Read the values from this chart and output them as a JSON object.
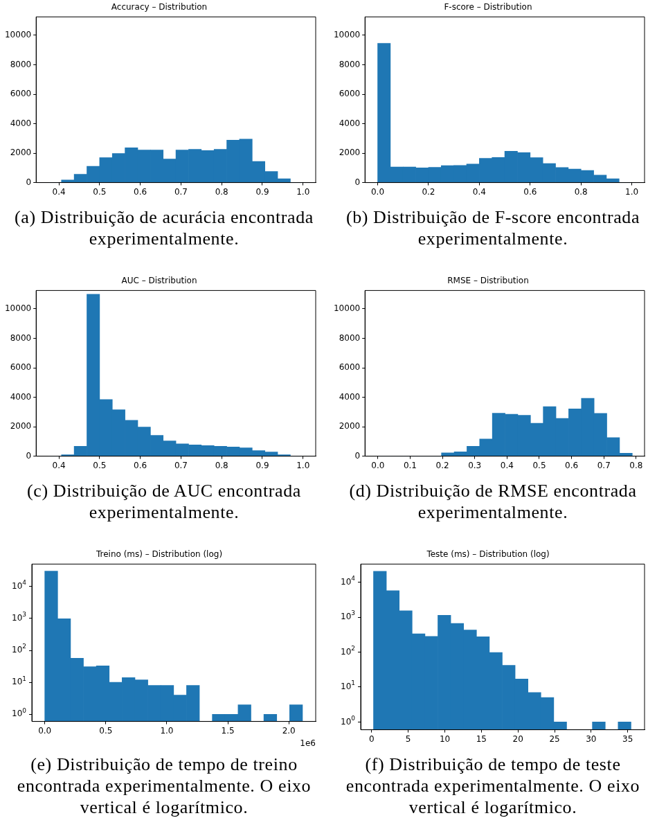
{
  "chart_data": [
    {
      "type": "histogram",
      "title": "Accuracy – Distribution",
      "subtitle": "(a) Distribuição de acurácia encontrada experimentalmente.",
      "color": "#1f77b4",
      "bins": [
        0.375,
        0.40625,
        0.4375,
        0.46875,
        0.5,
        0.53125,
        0.5625,
        0.59375,
        0.625,
        0.65625,
        0.6875,
        0.71875,
        0.75,
        0.78125,
        0.8125,
        0.84375,
        0.875,
        0.90625,
        0.9375,
        0.96875,
        1.0
      ],
      "values": [
        0,
        180,
        560,
        1110,
        1690,
        1980,
        2360,
        2210,
        2210,
        1600,
        2210,
        2260,
        2180,
        2260,
        2880,
        2950,
        1440,
        750,
        260,
        0
      ],
      "xlim": [
        0.344,
        1.031
      ],
      "xticks": [
        0.4,
        0.5,
        0.6,
        0.7,
        0.8,
        0.9,
        {
          "value": 1,
          "label": "1.0"
        }
      ],
      "ylim": [
        0,
        11250
      ],
      "yticks": [
        0,
        2000,
        4000,
        6000,
        8000,
        10000
      ]
    },
    {
      "type": "histogram",
      "title": "F-score – Distribution",
      "subtitle": "(b) Distribuição de F-score encontrada experimentalmente.",
      "color": "#1f77b4",
      "bins": [
        0,
        0.05,
        0.1,
        0.15,
        0.2,
        0.25,
        0.3,
        0.35,
        0.4,
        0.45,
        0.5,
        0.55,
        0.6,
        0.65,
        0.7,
        0.75,
        0.8,
        0.85,
        0.9,
        0.95,
        1.0
      ],
      "values": [
        9450,
        1060,
        1060,
        1000,
        1030,
        1150,
        1160,
        1260,
        1650,
        1700,
        2130,
        2030,
        1690,
        1300,
        1020,
        920,
        820,
        510,
        260,
        0
      ],
      "xlim": [
        -0.05,
        1.05
      ],
      "xticks": [
        {
          "value": 0,
          "label": "0.0"
        },
        0.2,
        0.4,
        0.6,
        0.8,
        {
          "value": 1,
          "label": "1.0"
        }
      ],
      "ylim": [
        0,
        11250
      ],
      "yticks": [
        0,
        2000,
        4000,
        6000,
        8000,
        10000
      ]
    },
    {
      "type": "histogram",
      "title": "AUC – Distribution",
      "subtitle": "(c) Distribuição de AUC encontrada experimentalmente.",
      "color": "#1f77b4",
      "bins": [
        0.375,
        0.40625,
        0.4375,
        0.46875,
        0.5,
        0.53125,
        0.5625,
        0.59375,
        0.625,
        0.65625,
        0.6875,
        0.71875,
        0.75,
        0.78125,
        0.8125,
        0.84375,
        0.875,
        0.90625,
        0.9375,
        0.96875,
        1.0
      ],
      "values": [
        0,
        100,
        670,
        11000,
        3840,
        3150,
        2430,
        1980,
        1410,
        1030,
        840,
        770,
        720,
        670,
        620,
        570,
        380,
        280,
        100,
        0
      ],
      "xlim": [
        0.344,
        1.031
      ],
      "xticks": [
        0.4,
        0.5,
        0.6,
        0.7,
        0.8,
        0.9,
        {
          "value": 1,
          "label": "1.0"
        }
      ],
      "ylim": [
        0,
        11250
      ],
      "yticks": [
        0,
        2000,
        4000,
        6000,
        8000,
        10000
      ]
    },
    {
      "type": "histogram",
      "title": "RMSE – Distribution",
      "subtitle": "(d) Distribuição de RMSE encontrada experimentalmente.",
      "color": "#1f77b4",
      "bins": [
        0,
        0.0394,
        0.0788,
        0.1182,
        0.1576,
        0.197,
        0.2364,
        0.2758,
        0.3152,
        0.3546,
        0.394,
        0.4334,
        0.4728,
        0.5122,
        0.5516,
        0.591,
        0.6304,
        0.6698,
        0.7092,
        0.7486,
        0.788
      ],
      "values": [
        0,
        0,
        0,
        0,
        0,
        230,
        300,
        670,
        1160,
        2920,
        2850,
        2770,
        2230,
        3360,
        2570,
        3210,
        3930,
        2900,
        1260,
        200
      ],
      "xlim": [
        -0.04,
        0.826
      ],
      "xticks": [
        {
          "value": 0,
          "label": "0.0"
        },
        0.1,
        0.2,
        0.3,
        0.4,
        0.5,
        0.6,
        0.7,
        0.8
      ],
      "ylim": [
        0,
        11250
      ],
      "yticks": [
        0,
        2000,
        4000,
        6000,
        8000,
        10000
      ]
    },
    {
      "type": "histogram",
      "title": "Treino (ms) – Distribution (log)",
      "subtitle": "(e) Distribuição de tempo de treino encontrada experimentalmente. O eixo vertical é logarítmico.",
      "color": "#1f77b4",
      "log": true,
      "annotations": [
        "1e6"
      ],
      "bins": [
        0,
        0.1056,
        0.2112,
        0.3168,
        0.4224,
        0.528,
        0.6336,
        0.7392,
        0.8448,
        0.9504,
        1.056,
        1.1616,
        1.2672,
        1.3728,
        1.4784,
        1.584,
        1.6896,
        1.7952,
        1.9008,
        2.0064,
        2.112
      ],
      "values": [
        30000,
        970,
        57,
        31,
        33,
        10,
        14,
        12,
        8,
        8,
        4,
        8,
        null,
        1,
        1,
        2,
        null,
        1,
        null,
        2
      ],
      "xlim": [
        -0.106,
        2.22
      ],
      "xticks": [
        {
          "value": 0,
          "label": "0.0"
        },
        0.5,
        {
          "value": 1,
          "label": "1.0"
        },
        1.5,
        {
          "value": 2,
          "label": "2.0"
        }
      ],
      "ylim": [
        0.62,
        50000
      ],
      "yticks": [
        {
          "value": 1,
          "label": "10$^{0}$"
        },
        {
          "value": 10,
          "label": "10$^{1}$"
        },
        {
          "value": 100,
          "label": "10$^{2}$"
        },
        {
          "value": 1000,
          "label": "10$^{3}$"
        },
        {
          "value": 10000,
          "label": "10$^{4}$"
        }
      ]
    },
    {
      "type": "histogram",
      "title": "Teste (ms) – Distribution (log)",
      "subtitle": "(f) Distribuição de tempo de teste encontrada experimentalmente. O eixo vertical é logarítmico.",
      "color": "#1f77b4",
      "log": true,
      "bins": [
        0.25,
        2.01,
        3.77,
        5.53,
        7.29,
        9.05,
        10.81,
        12.57,
        14.33,
        16.09,
        17.85,
        19.61,
        21.37,
        23.13,
        24.89,
        26.65,
        28.41,
        30.17,
        31.93,
        33.69,
        35.45
      ],
      "values": [
        20400,
        5700,
        1520,
        335,
        280,
        1130,
        660,
        430,
        275,
        97,
        42,
        17,
        7,
        5,
        1,
        null,
        null,
        1,
        null,
        1
      ],
      "xlim": [
        -1.5,
        37.3
      ],
      "xticks": [
        0,
        5,
        10,
        15,
        20,
        25,
        30,
        35
      ],
      "ylim": [
        0.62,
        33000
      ],
      "yticks": [
        {
          "value": 1,
          "label": "10$^{0}$"
        },
        {
          "value": 10,
          "label": "10$^{1}$"
        },
        {
          "value": 100,
          "label": "10$^{2}$"
        },
        {
          "value": 1000,
          "label": "10$^{3}$"
        },
        {
          "value": 10000,
          "label": "10$^{4}$"
        }
      ]
    }
  ]
}
